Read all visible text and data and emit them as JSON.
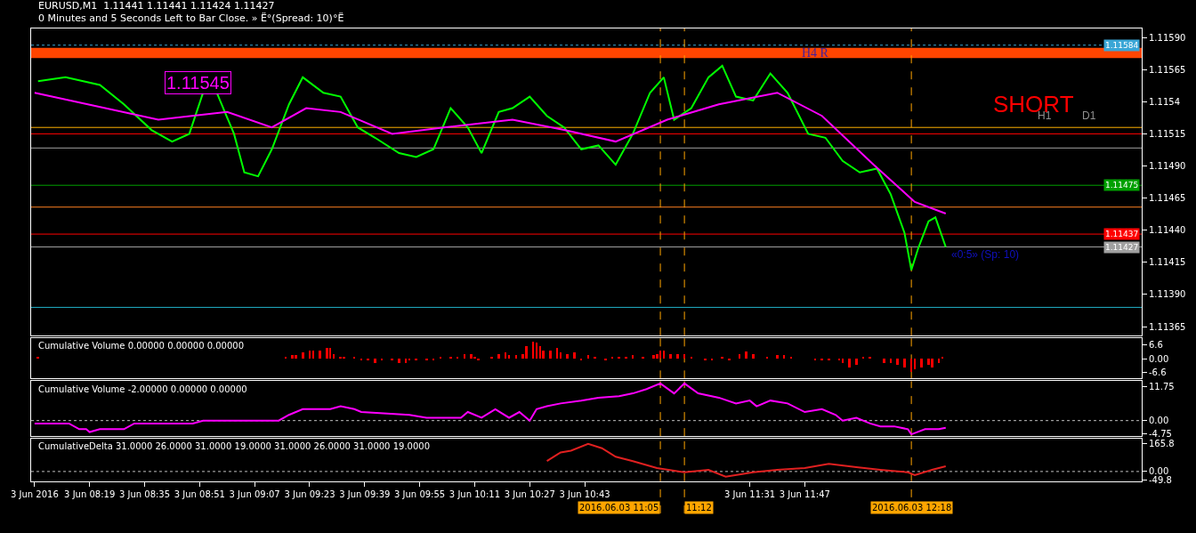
{
  "chart_data": [
    {
      "type": "line",
      "title": "EURUSD,M1  1.11441 1.11441 1.11424 1.11427",
      "subtitle": "0 Minutes and 5 Seconds Left to Bar Close. » Ë°(Spread: 10)°Ë",
      "series": [
        {
          "color": "#00ff00",
          "x": [
            "2016-06-03T08:04",
            "2016-06-03T08:12",
            "2016-06-03T08:22",
            "2016-06-03T08:29",
            "2016-06-03T08:37",
            "2016-06-03T08:43",
            "2016-06-03T08:48",
            "2016-06-03T08:52",
            "2016-06-03T08:56",
            "2016-06-03T09:01",
            "2016-06-03T09:04",
            "2016-06-03T09:08",
            "2016-06-03T09:12",
            "2016-06-03T09:17",
            "2016-06-03T09:21",
            "2016-06-03T09:27",
            "2016-06-03T09:32",
            "2016-06-03T09:37",
            "2016-06-03T09:42",
            "2016-06-03T09:49",
            "2016-06-03T09:54",
            "2016-06-03T09:59",
            "2016-06-03T10:04",
            "2016-06-03T10:09",
            "2016-06-03T10:13",
            "2016-06-03T10:18",
            "2016-06-03T10:22",
            "2016-06-03T10:27",
            "2016-06-03T10:32",
            "2016-06-03T10:37",
            "2016-06-03T10:42",
            "2016-06-03T10:47",
            "2016-06-03T10:52",
            "2016-06-03T10:57",
            "2016-06-03T11:02",
            "2016-06-03T11:06",
            "2016-06-03T11:09",
            "2016-06-03T11:14",
            "2016-06-03T11:19",
            "2016-06-03T11:23",
            "2016-06-03T11:27",
            "2016-06-03T11:32",
            "2016-06-03T11:37",
            "2016-06-03T11:42",
            "2016-06-03T11:48",
            "2016-06-03T11:53",
            "2016-06-03T11:58",
            "2016-06-03T12:03",
            "2016-06-03T12:08",
            "2016-06-03T12:12",
            "2016-06-03T12:16",
            "2016-06-03T12:18",
            "2016-06-03T12:20",
            "2016-06-03T12:23",
            "2016-06-03T12:25",
            "2016-06-03T12:28"
          ],
          "values": [
            1.11556,
            1.11559,
            1.11553,
            1.11538,
            1.11518,
            1.11509,
            1.11515,
            1.11547,
            1.11547,
            1.11515,
            1.11485,
            1.11482,
            1.11503,
            1.11538,
            1.11559,
            1.11547,
            1.11544,
            1.1152,
            1.11512,
            1.115,
            1.11497,
            1.11503,
            1.11535,
            1.1152,
            1.115,
            1.11532,
            1.11535,
            1.11544,
            1.11529,
            1.1152,
            1.11503,
            1.11506,
            1.11491,
            1.11515,
            1.11547,
            1.11559,
            1.11526,
            1.11535,
            1.11559,
            1.11568,
            1.11544,
            1.11541,
            1.11562,
            1.11547,
            1.11515,
            1.11512,
            1.11494,
            1.11485,
            1.11488,
            1.11468,
            1.11438,
            1.11409,
            1.11426,
            1.11447,
            1.1145,
            1.11427
          ]
        },
        {
          "color": "#ff00ff",
          "x": [
            "2016-06-03T08:03",
            "2016-06-03T08:39",
            "2016-06-03T08:59",
            "2016-06-03T09:12",
            "2016-06-03T09:22",
            "2016-06-03T09:32",
            "2016-06-03T09:47",
            "2016-06-03T10:02",
            "2016-06-03T10:22",
            "2016-06-03T10:37",
            "2016-06-03T10:52",
            "2016-06-03T11:07",
            "2016-06-03T11:22",
            "2016-06-03T11:39",
            "2016-06-03T11:52",
            "2016-06-03T12:07",
            "2016-06-03T12:19",
            "2016-06-03T12:28"
          ],
          "values": [
            1.11547,
            1.11526,
            1.11532,
            1.1152,
            1.11535,
            1.11532,
            1.11515,
            1.1152,
            1.11526,
            1.11518,
            1.11509,
            1.11526,
            1.11538,
            1.11547,
            1.11529,
            1.11491,
            1.11462,
            1.11453
          ]
        }
      ],
      "xlim": [
        "2016-06-03T08:02",
        "2016-06-03T13:25"
      ],
      "ylim": [
        1.11358,
        1.11597
      ],
      "yticks": [
        {
          "value": 1.1159,
          "label": "1.11590"
        },
        1.11565,
        1.1154,
        1.11515,
        {
          "value": 1.1149,
          "label": "1.11490"
        },
        1.11465,
        {
          "value": 1.1144,
          "label": "1.11440"
        },
        1.11415,
        {
          "value": 1.1139,
          "label": "1.11390"
        },
        1.11365
      ],
      "tick_labels": "y",
      "ref_lines": [
        {
          "axis": "y",
          "value": 1.11584,
          "label": "1.11584",
          "color": "#3aa6d6",
          "line_style": "dotted"
        },
        {
          "axis": "y",
          "value": 1.1152,
          "label": null,
          "color": "#ffb000",
          "line_style": "solid"
        },
        {
          "axis": "y",
          "value": 1.11515,
          "label": null,
          "color": "#ff0000",
          "line_style": "solid"
        },
        {
          "axis": "y",
          "value": 1.11504,
          "label": null,
          "color": "#a0a0a0",
          "line_style": "solid"
        },
        {
          "axis": "y",
          "value": 1.11475,
          "label": "1.11475",
          "color": "#00a000",
          "line_style": "solid"
        },
        {
          "axis": "y",
          "value": 1.11458,
          "label": null,
          "color": "#ff8020",
          "line_style": "solid"
        },
        {
          "axis": "y",
          "value": 1.11437,
          "label": "1.11437",
          "color": "#ff0000",
          "line_style": "solid"
        },
        {
          "axis": "y",
          "value": 1.11427,
          "label": "1.11427",
          "color": "#a0a0a0",
          "line_style": "solid"
        },
        {
          "axis": "y",
          "value": 1.1138,
          "label": null,
          "color": "#20b0c8",
          "line_style": "solid"
        },
        {
          "axis": "x",
          "value": "2016-06-03T11:05",
          "label": null,
          "color": "#ffa500",
          "line_style": "dashed"
        },
        {
          "axis": "x",
          "value": "2016-06-03T11:12",
          "label": null,
          "color": "#ffa500",
          "line_style": "dashed"
        },
        {
          "axis": "x",
          "value": "2016-06-03T12:18",
          "label": null,
          "color": "#ffa500",
          "line_style": "dashed"
        }
      ],
      "bands": [
        {
          "axis": "y",
          "from": 1.11574,
          "to": 1.11582,
          "label": "H4 R",
          "color": "#ff4500"
        }
      ],
      "annotations": [
        "1.11545",
        "SHORT",
        "H1",
        "D1",
        "«0:5» (Sp: 10)"
      ],
      "grid": false
    },
    {
      "type": "bar",
      "title": "Cumulative Volume 0.00000 0.00000 0.00000",
      "series": [
        {
          "color": "#ff0000",
          "x": [
            "2016-06-03T08:04",
            "2016-06-03T09:16",
            "2016-06-03T09:18",
            "2016-06-03T09:19",
            "2016-06-03T09:21",
            "2016-06-03T09:23",
            "2016-06-03T09:24",
            "2016-06-03T09:26",
            "2016-06-03T09:28",
            "2016-06-03T09:29",
            "2016-06-03T09:30",
            "2016-06-03T09:32",
            "2016-06-03T09:33",
            "2016-06-03T09:36",
            "2016-06-03T09:38",
            "2016-06-03T09:40",
            "2016-06-03T09:42",
            "2016-06-03T09:44",
            "2016-06-03T09:47",
            "2016-06-03T09:49",
            "2016-06-03T09:51",
            "2016-06-03T09:52",
            "2016-06-03T09:54",
            "2016-06-03T09:57",
            "2016-06-03T09:59",
            "2016-06-03T10:01",
            "2016-06-03T10:04",
            "2016-06-03T10:06",
            "2016-06-03T10:08",
            "2016-06-03T10:10",
            "2016-06-03T10:11",
            "2016-06-03T10:12",
            "2016-06-03T10:16",
            "2016-06-03T10:18",
            "2016-06-03T10:20",
            "2016-06-03T10:21",
            "2016-06-03T10:23",
            "2016-06-03T10:25",
            "2016-06-03T10:26",
            "2016-06-03T10:28",
            "2016-06-03T10:29",
            "2016-06-03T10:30",
            "2016-06-03T10:31",
            "2016-06-03T10:33",
            "2016-06-03T10:35",
            "2016-06-03T10:36",
            "2016-06-03T10:38",
            "2016-06-03T10:40",
            "2016-06-03T10:42",
            "2016-06-03T10:44",
            "2016-06-03T10:46",
            "2016-06-03T10:49",
            "2016-06-03T10:51",
            "2016-06-03T10:53",
            "2016-06-03T10:55",
            "2016-06-03T10:57",
            "2016-06-03T11:00",
            "2016-06-03T11:03",
            "2016-06-03T11:04",
            "2016-06-03T11:05",
            "2016-06-03T11:06",
            "2016-06-03T11:08",
            "2016-06-03T11:10",
            "2016-06-03T11:12",
            "2016-06-03T11:14",
            "2016-06-03T11:18",
            "2016-06-03T11:20",
            "2016-06-03T11:23",
            "2016-06-03T11:25",
            "2016-06-03T11:28",
            "2016-06-03T11:30",
            "2016-06-03T11:32",
            "2016-06-03T11:36",
            "2016-06-03T11:39",
            "2016-06-03T11:41",
            "2016-06-03T11:43",
            "2016-06-03T11:50",
            "2016-06-03T11:52",
            "2016-06-03T11:54",
            "2016-06-03T11:57",
            "2016-06-03T11:58",
            "2016-06-03T12:00",
            "2016-06-03T12:02",
            "2016-06-03T12:04",
            "2016-06-03T12:06",
            "2016-06-03T12:10",
            "2016-06-03T12:12",
            "2016-06-03T12:14",
            "2016-06-03T12:16",
            "2016-06-03T12:18",
            "2016-06-03T12:19",
            "2016-06-03T12:21",
            "2016-06-03T12:23",
            "2016-06-03T12:24",
            "2016-06-03T12:26",
            "2016-06-03T12:27"
          ],
          "values": [
            1,
            1,
            1.5,
            1.5,
            3,
            4,
            4,
            4,
            5,
            5,
            2,
            1,
            1,
            1,
            -1,
            -1,
            -2,
            -1,
            -1,
            -2,
            -2,
            -1,
            -1,
            -1,
            -1,
            1,
            1,
            1,
            2,
            2,
            1,
            -1,
            1,
            2,
            3,
            1.5,
            1.5,
            2,
            6,
            8,
            7.5,
            6,
            4,
            4,
            5,
            3,
            2,
            3,
            -1,
            1.5,
            1,
            -1,
            1,
            1,
            1,
            1.5,
            1,
            1.5,
            2,
            4,
            4,
            2,
            2,
            2,
            1,
            -1,
            -1,
            1,
            -1,
            2,
            3.5,
            2,
            1,
            1.5,
            1.5,
            1,
            -1,
            -1,
            -1,
            -1,
            -2,
            -4,
            -3,
            1,
            1,
            -2,
            -2,
            -3,
            -4,
            -6.5,
            -5,
            -4,
            -3,
            -4,
            -2,
            1
          ]
        }
      ],
      "xlim": [
        "2016-06-03T08:02",
        "2016-06-03T13:25"
      ],
      "ylim": [
        -9.3,
        9.7
      ],
      "yticks": [
        6.6,
        {
          "value": 0,
          "label": "0.00"
        },
        -6.6
      ],
      "tick_labels": "y",
      "ref_lines": [
        {
          "axis": "x",
          "value": "2016-06-03T11:05",
          "label": null,
          "color": "#ffa500",
          "line_style": "dashed"
        },
        {
          "axis": "x",
          "value": "2016-06-03T11:12",
          "label": null,
          "color": "#ffa500",
          "line_style": "dashed"
        },
        {
          "axis": "x",
          "value": "2016-06-03T12:18",
          "label": null,
          "color": "#ffa500",
          "line_style": "dashed"
        }
      ],
      "grid": false
    },
    {
      "type": "line",
      "title": "Cumulative Volume -2.00000 0.00000 0.00000",
      "series": [
        {
          "color": "#ff00ff",
          "x": [
            "2016-06-03T08:03",
            "2016-06-03T08:13",
            "2016-06-03T08:16",
            "2016-06-03T08:18",
            "2016-06-03T08:19",
            "2016-06-03T08:22",
            "2016-06-03T08:29",
            "2016-06-03T08:32",
            "2016-06-03T08:49",
            "2016-06-03T08:52",
            "2016-06-03T09:14",
            "2016-06-03T09:17",
            "2016-06-03T09:21",
            "2016-06-03T09:29",
            "2016-06-03T09:32",
            "2016-06-03T09:36",
            "2016-06-03T09:38",
            "2016-06-03T09:52",
            "2016-06-03T09:57",
            "2016-06-03T10:07",
            "2016-06-03T10:09",
            "2016-06-03T10:13",
            "2016-06-03T10:17",
            "2016-06-03T10:21",
            "2016-06-03T10:24",
            "2016-06-03T10:27",
            "2016-06-03T10:29",
            "2016-06-03T10:32",
            "2016-06-03T10:36",
            "2016-06-03T10:42",
            "2016-06-03T10:47",
            "2016-06-03T10:53",
            "2016-06-03T10:57",
            "2016-06-03T11:01",
            "2016-06-03T11:05",
            "2016-06-03T11:09",
            "2016-06-03T11:12",
            "2016-06-03T11:16",
            "2016-06-03T11:22",
            "2016-06-03T11:27",
            "2016-06-03T11:31",
            "2016-06-03T11:33",
            "2016-06-03T11:37",
            "2016-06-03T11:42",
            "2016-06-03T11:47",
            "2016-06-03T11:52",
            "2016-06-03T11:56",
            "2016-06-03T11:58",
            "2016-06-03T12:02",
            "2016-06-03T12:06",
            "2016-06-03T12:09",
            "2016-06-03T12:13",
            "2016-06-03T12:17",
            "2016-06-03T12:18",
            "2016-06-03T12:22",
            "2016-06-03T12:26",
            "2016-06-03T12:28"
          ],
          "values": [
            -1,
            -1,
            -3,
            -3,
            -4,
            -3,
            -3,
            -1,
            -1,
            0,
            0,
            2,
            4,
            4,
            5,
            4,
            3,
            2,
            1,
            1,
            3,
            1,
            4,
            1,
            3,
            0,
            4,
            5,
            6,
            7,
            8,
            8.5,
            9.5,
            11,
            13,
            9.5,
            13,
            9.5,
            8,
            6,
            7,
            5,
            7,
            6,
            3,
            4,
            2,
            0,
            1,
            -1,
            -2,
            -2,
            -3,
            -4.8,
            -3,
            -3,
            -2.5
          ]
        }
      ],
      "xlim": [
        "2016-06-03T08:02",
        "2016-06-03T13:25"
      ],
      "ylim": [
        -5.4,
        13.75
      ],
      "yticks": [
        11.75,
        {
          "value": 0,
          "label": "0.00"
        },
        -4.75
      ],
      "tick_labels": "y",
      "ref_lines": [
        {
          "axis": "y",
          "value": 0,
          "label": null,
          "color": "#c0c0c0",
          "line_style": "dotted"
        },
        {
          "axis": "x",
          "value": "2016-06-03T11:05",
          "label": null,
          "color": "#ffa500",
          "line_style": "dashed"
        },
        {
          "axis": "x",
          "value": "2016-06-03T11:12",
          "label": null,
          "color": "#ffa500",
          "line_style": "dashed"
        },
        {
          "axis": "x",
          "value": "2016-06-03T12:18",
          "label": null,
          "color": "#ffa500",
          "line_style": "dashed"
        }
      ],
      "grid": false
    },
    {
      "type": "line",
      "title": "CumulativeDelta 31.0000 26.0000 31.0000 19.0000 31.0000 26.0000 31.0000 19.0000",
      "series": [
        {
          "color": "#e02020",
          "x": [
            "2016-06-03T10:32",
            "2016-06-03T10:36",
            "2016-06-03T10:39",
            "2016-06-03T10:44",
            "2016-06-03T10:48",
            "2016-06-03T10:52",
            "2016-06-03T10:57",
            "2016-06-03T11:04",
            "2016-06-03T11:12",
            "2016-06-03T11:19",
            "2016-06-03T11:24",
            "2016-06-03T11:32",
            "2016-06-03T11:39",
            "2016-06-03T11:47",
            "2016-06-03T11:54",
            "2016-06-03T12:02",
            "2016-06-03T12:09",
            "2016-06-03T12:17",
            "2016-06-03T12:19",
            "2016-06-03T12:24",
            "2016-06-03T12:28"
          ],
          "values": [
            62,
            114,
            124,
            165,
            139,
            88,
            62,
            21,
            -5,
            10,
            -31,
            -5,
            10,
            21,
            46,
            26,
            10,
            -5,
            -21,
            10,
            31
          ]
        }
      ],
      "xlim": [
        "2016-06-03T08:02",
        "2016-06-03T13:25"
      ],
      "ylim": [
        -59,
        195
      ],
      "yticks": [
        165.8,
        {
          "value": 0,
          "label": "0.00"
        },
        -49.8
      ],
      "xticks": [
        {
          "value": "2016-06-03T08:03",
          "label": "3 Jun 2016"
        },
        {
          "value": "2016-06-03T08:19",
          "label": "3 Jun 08:19"
        },
        {
          "value": "2016-06-03T08:35",
          "label": "3 Jun 08:35"
        },
        {
          "value": "2016-06-03T08:51",
          "label": "3 Jun 08:51"
        },
        {
          "value": "2016-06-03T09:07",
          "label": "3 Jun 09:07"
        },
        {
          "value": "2016-06-03T09:23",
          "label": "3 Jun 09:23"
        },
        {
          "value": "2016-06-03T09:39",
          "label": "3 Jun 09:39"
        },
        {
          "value": "2016-06-03T09:55",
          "label": "3 Jun 09:55"
        },
        {
          "value": "2016-06-03T10:11",
          "label": "3 Jun 10:11"
        },
        {
          "value": "2016-06-03T10:27",
          "label": "3 Jun 10:27"
        },
        {
          "value": "2016-06-03T10:43",
          "label": "3 Jun 10:43"
        },
        {
          "value": "2016-06-03T11:31",
          "label": "3 Jun 11:31"
        },
        {
          "value": "2016-06-03T11:47",
          "label": "3 Jun 11:47"
        }
      ],
      "ref_lines": [
        {
          "axis": "y",
          "value": 0,
          "label": null,
          "color": "#c0c0c0",
          "line_style": "dotted"
        },
        {
          "axis": "x",
          "value": "2016-06-03T11:05",
          "label": "2016.06.03 11:05",
          "color": "#ffa500",
          "line_style": "dashed"
        },
        {
          "axis": "x",
          "value": "2016-06-03T11:12",
          "label": "11:12",
          "color": "#ffa500",
          "line_style": "dashed"
        },
        {
          "axis": "x",
          "value": "2016-06-03T12:18",
          "label": "2016.06.03 12:18",
          "color": "#ffa500",
          "line_style": "dashed"
        }
      ],
      "grid": false
    }
  ]
}
